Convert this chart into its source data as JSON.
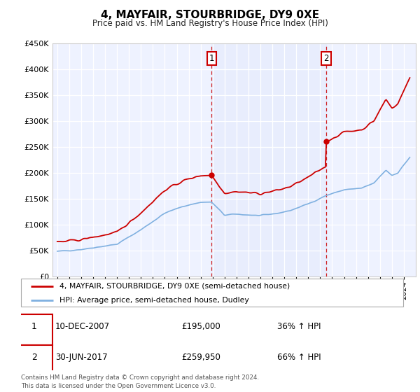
{
  "title": "4, MAYFAIR, STOURBRIDGE, DY9 0XE",
  "subtitle": "Price paid vs. HM Land Registry's House Price Index (HPI)",
  "red_label": "4, MAYFAIR, STOURBRIDGE, DY9 0XE (semi-detached house)",
  "blue_label": "HPI: Average price, semi-detached house, Dudley",
  "transaction1_date": "10-DEC-2007",
  "transaction1_price": 195000,
  "transaction1_label": "£195,000",
  "transaction1_hpi": "36% ↑ HPI",
  "transaction2_date": "30-JUN-2017",
  "transaction2_price": 259950,
  "transaction2_label": "£259,950",
  "transaction2_hpi": "66% ↑ HPI",
  "footer": "Contains HM Land Registry data © Crown copyright and database right 2024.\nThis data is licensed under the Open Government Licence v3.0.",
  "ylim": [
    0,
    450000
  ],
  "yticks": [
    0,
    50000,
    100000,
    150000,
    200000,
    250000,
    300000,
    350000,
    400000,
    450000
  ],
  "plot_bg": "#eef2ff",
  "red_color": "#cc0000",
  "blue_color": "#7fb0e0",
  "vline_color": "#cc0000",
  "t1": 2007.92,
  "t2": 2017.5,
  "p1": 195000,
  "p2": 259950,
  "xstart": 1995,
  "xend": 2024.5
}
